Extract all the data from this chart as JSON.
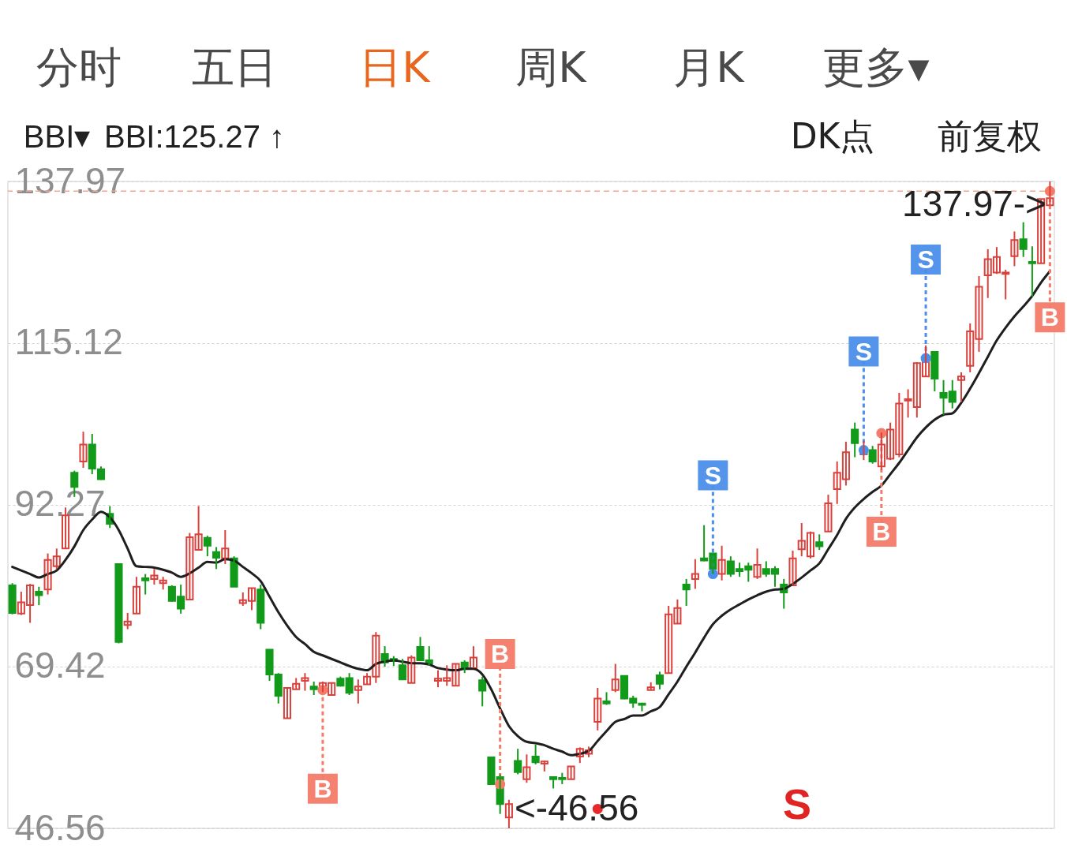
{
  "chart_data": {
    "type": "candlestick",
    "categories": [
      null,
      null,
      null,
      null,
      null,
      null,
      null,
      null,
      null,
      null,
      null,
      null,
      null,
      null,
      null,
      null,
      null,
      null,
      null,
      null,
      null,
      null,
      null,
      null,
      null,
      null,
      null,
      null,
      null,
      null,
      null,
      null,
      null,
      null,
      null,
      null,
      null,
      null,
      null,
      null,
      null,
      null,
      null,
      null,
      null,
      null,
      null,
      null,
      null,
      null,
      null,
      null,
      null,
      null,
      null,
      null,
      null,
      null,
      null,
      null,
      null,
      null,
      null,
      null,
      null,
      null,
      null,
      null,
      null,
      null,
      null,
      null,
      null,
      null,
      null,
      null,
      null,
      null,
      null,
      null,
      null,
      null,
      null,
      null,
      null,
      null,
      null,
      null,
      null,
      null,
      null,
      null,
      null,
      null,
      null,
      null,
      null,
      null,
      null,
      null,
      null,
      null,
      null,
      null,
      null,
      null,
      null,
      null,
      null,
      null,
      null,
      null,
      null,
      null,
      null,
      null,
      null,
      null
    ],
    "ohlc": [
      [
        80.9,
        81.2,
        76.8,
        77.0
      ],
      [
        76.9,
        80.0,
        76.7,
        78.5
      ],
      [
        78.1,
        81.1,
        75.6,
        80.9
      ],
      [
        80.0,
        80.7,
        78.1,
        79.5
      ],
      [
        80.3,
        85.4,
        79.6,
        84.5
      ],
      [
        83.6,
        86.1,
        83.2,
        85.0
      ],
      [
        86.1,
        91.9,
        86.1,
        90.8
      ],
      [
        96.8,
        97.1,
        93.4,
        94.8
      ],
      [
        98.4,
        102.6,
        97.5,
        100.8
      ],
      [
        100.8,
        102.3,
        96.6,
        97.4
      ],
      [
        97.3,
        97.7,
        95.8,
        95.9
      ],
      [
        91.0,
        92.1,
        89.0,
        89.6
      ],
      [
        83.9,
        83.9,
        72.7,
        72.9
      ],
      [
        75.3,
        77.0,
        74.7,
        75.8
      ],
      [
        76.9,
        82.1,
        76.9,
        80.7
      ],
      [
        81.9,
        82.5,
        79.6,
        81.6
      ],
      [
        81.8,
        83.2,
        81.0,
        82.3
      ],
      [
        81.2,
        82.1,
        80.3,
        81.6
      ],
      [
        80.7,
        80.9,
        78.6,
        78.7
      ],
      [
        79.3,
        81.0,
        76.9,
        77.6
      ],
      [
        78.9,
        88.3,
        78.9,
        87.7
      ],
      [
        85.9,
        92.1,
        85.9,
        88.1
      ],
      [
        87.6,
        87.9,
        85.0,
        86.5
      ],
      [
        85.6,
        86.3,
        83.2,
        84.8
      ],
      [
        84.7,
        88.7,
        83.9,
        86.1
      ],
      [
        84.7,
        85.0,
        80.7,
        80.7
      ],
      [
        78.4,
        79.9,
        78.0,
        78.8
      ],
      [
        78.7,
        80.5,
        77.4,
        80.5
      ],
      [
        80.3,
        81.0,
        74.7,
        75.6
      ],
      [
        71.8,
        71.8,
        67.4,
        68.3
      ],
      [
        68.3,
        68.5,
        64.2,
        65.3
      ],
      [
        62.1,
        66.4,
        62.1,
        66.4
      ],
      [
        66.2,
        67.8,
        66.2,
        67.0
      ],
      [
        67.4,
        68.5,
        66.0,
        67.8
      ],
      [
        66.6,
        67.3,
        65.4,
        66.2
      ],
      [
        65.8,
        67.3,
        65.8,
        67.1
      ],
      [
        65.4,
        67.1,
        65.4,
        67.1
      ],
      [
        67.7,
        68.0,
        66.6,
        66.7
      ],
      [
        67.8,
        68.5,
        65.4,
        65.7
      ],
      [
        66.1,
        67.6,
        64.2,
        66.6
      ],
      [
        66.9,
        68.5,
        66.9,
        68.0
      ],
      [
        68.0,
        74.3,
        67.1,
        73.8
      ],
      [
        71.2,
        72.3,
        69.4,
        70.0
      ],
      [
        70.5,
        70.9,
        69.5,
        70.2
      ],
      [
        69.6,
        70.5,
        67.6,
        67.6
      ],
      [
        67.1,
        71.0,
        67.1,
        70.7
      ],
      [
        72.2,
        73.6,
        70.3,
        70.3
      ],
      [
        70.3,
        72.3,
        69.6,
        69.8
      ],
      [
        67.4,
        68.9,
        66.5,
        67.7
      ],
      [
        67.4,
        69.6,
        66.7,
        67.8
      ],
      [
        66.7,
        69.8,
        66.7,
        69.8
      ],
      [
        70.0,
        70.3,
        68.5,
        69.1
      ],
      [
        69.2,
        72.3,
        69.2,
        70.7
      ],
      [
        67.5,
        68.0,
        63.8,
        66.0
      ],
      [
        56.6,
        56.6,
        52.8,
        52.8
      ],
      [
        53.8,
        54.2,
        48.6,
        50.0
      ],
      [
        48.1,
        50.6,
        46.56,
        50.0
      ],
      [
        56.1,
        57.8,
        54.2,
        54.5
      ],
      [
        53.5,
        57.0,
        53.0,
        55.2
      ],
      [
        56.7,
        58.4,
        55.6,
        55.9
      ],
      [
        55.7,
        56.1,
        54.6,
        56.0
      ],
      [
        53.8,
        53.9,
        52.2,
        53.5
      ],
      [
        53.7,
        54.4,
        52.8,
        53.5
      ],
      [
        53.5,
        55.3,
        53.5,
        55.3
      ],
      [
        56.7,
        58.0,
        55.8,
        57.8
      ],
      [
        57.1,
        58.1,
        56.6,
        57.6
      ],
      [
        61.6,
        66.4,
        60.4,
        64.9
      ],
      [
        64.5,
        65.8,
        64.0,
        64.2
      ],
      [
        66.1,
        69.8,
        65.8,
        67.6
      ],
      [
        68.1,
        68.1,
        64.8,
        64.9
      ],
      [
        64.9,
        65.3,
        63.6,
        64.3
      ],
      [
        64.2,
        64.3,
        63.1,
        64.0
      ],
      [
        66.1,
        67.2,
        66.1,
        66.5
      ],
      [
        68.2,
        68.7,
        66.2,
        67.0
      ],
      [
        68.5,
        78.0,
        68.5,
        76.8
      ],
      [
        75.5,
        78.9,
        75.5,
        77.7
      ],
      [
        81.0,
        81.8,
        78.0,
        80.3
      ],
      [
        81.8,
        84.6,
        80.4,
        82.5
      ],
      [
        84.7,
        89.4,
        84.3,
        84.4
      ],
      [
        85.4,
        85.4,
        82.5,
        83.2
      ],
      [
        82.5,
        86.5,
        81.6,
        84.5
      ],
      [
        84.3,
        85.0,
        82.1,
        82.5
      ],
      [
        83.2,
        84.1,
        82.1,
        82.9
      ],
      [
        83.6,
        84.1,
        81.4,
        83.1
      ],
      [
        82.1,
        86.1,
        81.8,
        83.8
      ],
      [
        83.2,
        84.3,
        82.1,
        82.5
      ],
      [
        83.2,
        83.6,
        80.7,
        82.5
      ],
      [
        81.0,
        81.8,
        77.6,
        79.9
      ],
      [
        80.9,
        85.8,
        80.9,
        84.7
      ],
      [
        86.0,
        89.7,
        85.0,
        87.2
      ],
      [
        85.0,
        88.5,
        84.7,
        88.3
      ],
      [
        87.0,
        88.1,
        85.9,
        86.4
      ],
      [
        88.5,
        93.7,
        88.5,
        92.5
      ],
      [
        94.5,
        98.4,
        92.4,
        96.8
      ],
      [
        95.9,
        101.2,
        95.0,
        99.7
      ],
      [
        102.9,
        103.9,
        99.0,
        101.0
      ],
      [
        99.4,
        101.3,
        98.6,
        99.7
      ],
      [
        100.0,
        100.6,
        98.1,
        98.4
      ],
      [
        97.7,
        102.5,
        97.2,
        100.8
      ],
      [
        98.8,
        103.9,
        98.6,
        102.9
      ],
      [
        99.4,
        108.1,
        99.0,
        106.6
      ],
      [
        107.0,
        108.6,
        104.6,
        107.2
      ],
      [
        106.1,
        112.4,
        104.6,
        112.3
      ],
      [
        110.4,
        114.8,
        110.4,
        112.8
      ],
      [
        113.9,
        113.9,
        108.3,
        110.1
      ],
      [
        108.1,
        109.9,
        105.0,
        107.4
      ],
      [
        108.3,
        109.9,
        105.9,
        106.8
      ],
      [
        109.9,
        111.0,
        106.8,
        110.4
      ],
      [
        111.9,
        117.9,
        111.0,
        116.8
      ],
      [
        115.7,
        124.6,
        113.9,
        123.1
      ],
      [
        124.7,
        128.4,
        121.5,
        127.0
      ],
      [
        125.1,
        128.7,
        124.9,
        127.3
      ],
      [
        124.9,
        125.5,
        121.3,
        125.1
      ],
      [
        127.4,
        130.9,
        126.0,
        129.7
      ],
      [
        129.8,
        132.2,
        127.3,
        128.4
      ],
      [
        126.6,
        128.8,
        121.7,
        126.4
      ],
      [
        126.4,
        135.5,
        126.4,
        135.5
      ],
      [
        134.6,
        137.97,
        134.5,
        135.6
      ]
    ],
    "colors": [
      "#129a1a",
      "#d9413c",
      "#d9413c",
      "#129a1a",
      "#d9413c",
      "#d9413c",
      "#d9413c",
      "#129a1a",
      "#d9413c",
      "#129a1a",
      "#129a1a",
      "#129a1a",
      "#129a1a",
      "#d9413c",
      "#d9413c",
      "#129a1a",
      "#d9413c",
      "#d9413c",
      "#129a1a",
      "#129a1a",
      "#d9413c",
      "#d9413c",
      "#129a1a",
      "#129a1a",
      "#d9413c",
      "#129a1a",
      "#d9413c",
      "#d9413c",
      "#129a1a",
      "#129a1a",
      "#129a1a",
      "#d9413c",
      "#d9413c",
      "#d9413c",
      "#129a1a",
      "#d9413c",
      "#d9413c",
      "#129a1a",
      "#129a1a",
      "#d9413c",
      "#d9413c",
      "#d9413c",
      "#129a1a",
      "#129a1a",
      "#129a1a",
      "#d9413c",
      "#129a1a",
      "#129a1a",
      "#d9413c",
      "#d9413c",
      "#d9413c",
      "#129a1a",
      "#d9413c",
      "#129a1a",
      "#129a1a",
      "#129a1a",
      "#d9413c",
      "#129a1a",
      "#d9413c",
      "#129a1a",
      "#d9413c",
      "#129a1a",
      "#129a1a",
      "#d9413c",
      "#d9413c",
      "#d9413c",
      "#d9413c",
      "#129a1a",
      "#d9413c",
      "#129a1a",
      "#129a1a",
      "#129a1a",
      "#d9413c",
      "#129a1a",
      "#d9413c",
      "#d9413c",
      "#129a1a",
      "#d9413c",
      "#129a1a",
      "#129a1a",
      "#d9413c",
      "#129a1a",
      "#129a1a",
      "#129a1a",
      "#d9413c",
      "#129a1a",
      "#129a1a",
      "#129a1a",
      "#d9413c",
      "#d9413c",
      "#d9413c",
      "#129a1a",
      "#d9413c",
      "#d9413c",
      "#d9413c",
      "#129a1a",
      "#d9413c",
      "#129a1a",
      "#d9413c",
      "#d9413c",
      "#d9413c",
      "#d9413c",
      "#d9413c",
      "#d9413c",
      "#129a1a",
      "#129a1a",
      "#129a1a",
      "#d9413c",
      "#d9413c",
      "#d9413c",
      "#d9413c",
      "#d9413c",
      "#d9413c",
      "#d9413c",
      "#129a1a",
      "#129a1a",
      "#d9413c",
      "#d9413c"
    ],
    "series": [
      {
        "name": "BBI:125.27 ↑",
        "type": "line",
        "color": "#1f1f1f",
        "values": [
          83.5,
          83.0,
          82.5,
          82.0,
          82.5,
          83.0,
          84.5,
          86.4,
          88.7,
          90.2,
          91.3,
          90.5,
          88.7,
          86.1,
          83.6,
          83.5,
          83.4,
          83.1,
          82.7,
          82.1,
          82.6,
          83.4,
          84.2,
          84.1,
          84.6,
          84.4,
          83.5,
          82.6,
          81.5,
          79.3,
          77.1,
          75.2,
          73.6,
          72.6,
          71.5,
          71.0,
          70.5,
          70.0,
          69.5,
          69.1,
          68.9,
          69.8,
          70.1,
          70.3,
          70.1,
          69.9,
          69.9,
          69.7,
          69.2,
          69.0,
          68.9,
          69.1,
          69.1,
          68.3,
          66.2,
          63.5,
          61.0,
          59.6,
          58.8,
          58.6,
          58.3,
          57.8,
          57.4,
          56.9,
          57.1,
          57.5,
          58.9,
          60.3,
          61.6,
          62.0,
          62.5,
          62.5,
          63.1,
          63.7,
          65.5,
          67.3,
          69.4,
          71.4,
          73.5,
          75.4,
          76.6,
          77.5,
          78.2,
          78.9,
          79.5,
          80.0,
          80.3,
          80.4,
          81.1,
          82.0,
          83.0,
          84.0,
          86.0,
          88.0,
          90.3,
          91.9,
          93.1,
          94.1,
          95.0,
          96.6,
          98.2,
          100.0,
          101.8,
          103.2,
          104.3,
          105.0,
          105.2,
          106.7,
          108.7,
          110.9,
          113.2,
          115.5,
          117.3,
          118.9,
          120.3,
          121.8,
          123.7,
          125.3
        ]
      },
      {
        "name": "B",
        "type": "scatter",
        "color": "#f47b68",
        "values": [
          null,
          null,
          null,
          null,
          null,
          null,
          null,
          null,
          null,
          null,
          null,
          null,
          null,
          null,
          null,
          null,
          null,
          null,
          null,
          null,
          null,
          null,
          null,
          null,
          null,
          null,
          null,
          null,
          null,
          null,
          null,
          null,
          null,
          null,
          null,
          66.1,
          null,
          null,
          null,
          null,
          null,
          null,
          null,
          null,
          null,
          null,
          null,
          null,
          null,
          null,
          null,
          null,
          null,
          null,
          null,
          52.8,
          null,
          null,
          null,
          null,
          null,
          null,
          null,
          null,
          null,
          null,
          null,
          null,
          null,
          null,
          null,
          null,
          null,
          null,
          null,
          null,
          null,
          null,
          null,
          null,
          null,
          null,
          null,
          null,
          null,
          null,
          null,
          null,
          null,
          null,
          null,
          null,
          null,
          null,
          null,
          null,
          null,
          null,
          102.4,
          null,
          null,
          null,
          null,
          null,
          null,
          null,
          null,
          null,
          null,
          null,
          null,
          null,
          null,
          null,
          null,
          null,
          null,
          136.6
        ]
      },
      {
        "name": "S",
        "type": "scatter",
        "color": "#4b8fea",
        "values": [
          null,
          null,
          null,
          null,
          null,
          null,
          null,
          null,
          null,
          null,
          null,
          null,
          null,
          null,
          null,
          null,
          null,
          null,
          null,
          null,
          null,
          null,
          null,
          null,
          null,
          null,
          null,
          null,
          null,
          null,
          null,
          null,
          null,
          null,
          null,
          null,
          null,
          null,
          null,
          null,
          null,
          null,
          null,
          null,
          null,
          null,
          null,
          null,
          null,
          null,
          null,
          null,
          null,
          null,
          null,
          null,
          null,
          null,
          null,
          null,
          null,
          null,
          null,
          null,
          null,
          null,
          null,
          null,
          null,
          null,
          null,
          null,
          null,
          null,
          null,
          null,
          null,
          null,
          null,
          82.5,
          null,
          null,
          null,
          null,
          null,
          null,
          null,
          null,
          null,
          null,
          null,
          null,
          null,
          null,
          null,
          null,
          100.0,
          null,
          null,
          null,
          null,
          null,
          null,
          113.0,
          null,
          null,
          null,
          null,
          null,
          null,
          null,
          null,
          null,
          null,
          null,
          null,
          null,
          null
        ]
      },
      {
        "type": "scatter",
        "color": "#e8282b",
        "values": [
          null,
          null,
          null,
          null,
          null,
          null,
          null,
          null,
          null,
          null,
          null,
          null,
          null,
          null,
          null,
          null,
          null,
          null,
          null,
          null,
          null,
          null,
          null,
          null,
          null,
          null,
          null,
          null,
          null,
          null,
          null,
          null,
          null,
          null,
          null,
          null,
          null,
          null,
          null,
          null,
          null,
          null,
          null,
          null,
          null,
          null,
          null,
          null,
          null,
          null,
          null,
          null,
          null,
          null,
          null,
          null,
          null,
          null,
          null,
          null,
          null,
          null,
          null,
          null,
          null,
          null,
          49.3,
          null,
          null,
          null,
          null,
          null,
          null,
          null,
          null,
          null,
          null,
          null,
          null,
          null,
          null,
          null,
          null,
          null,
          null,
          null,
          null,
          null,
          null,
          null,
          null,
          null,
          null,
          null,
          null,
          null,
          null,
          null,
          null,
          null,
          null,
          null,
          null,
          null,
          null,
          null,
          null,
          null,
          null,
          null,
          null,
          null,
          null,
          null,
          null,
          null,
          null,
          null
        ]
      }
    ],
    "ylim": [
      46.56,
      137.97
    ],
    "yticks": [
      46.56,
      69.42,
      92.27,
      115.12,
      137.97
    ],
    "grid": "y",
    "tick_labels": "y",
    "ref_lines": [
      {
        "axis": "y",
        "value": 136.6,
        "color": "#f0a58c",
        "line_style": "dashed"
      }
    ],
    "annotations": [
      "分时",
      "五日",
      "日K",
      "周K",
      "月K",
      "更多▾",
      "BBI▾",
      "DK点",
      "前复权",
      "S",
      "137.97->",
      "<-46.56"
    ]
  }
}
